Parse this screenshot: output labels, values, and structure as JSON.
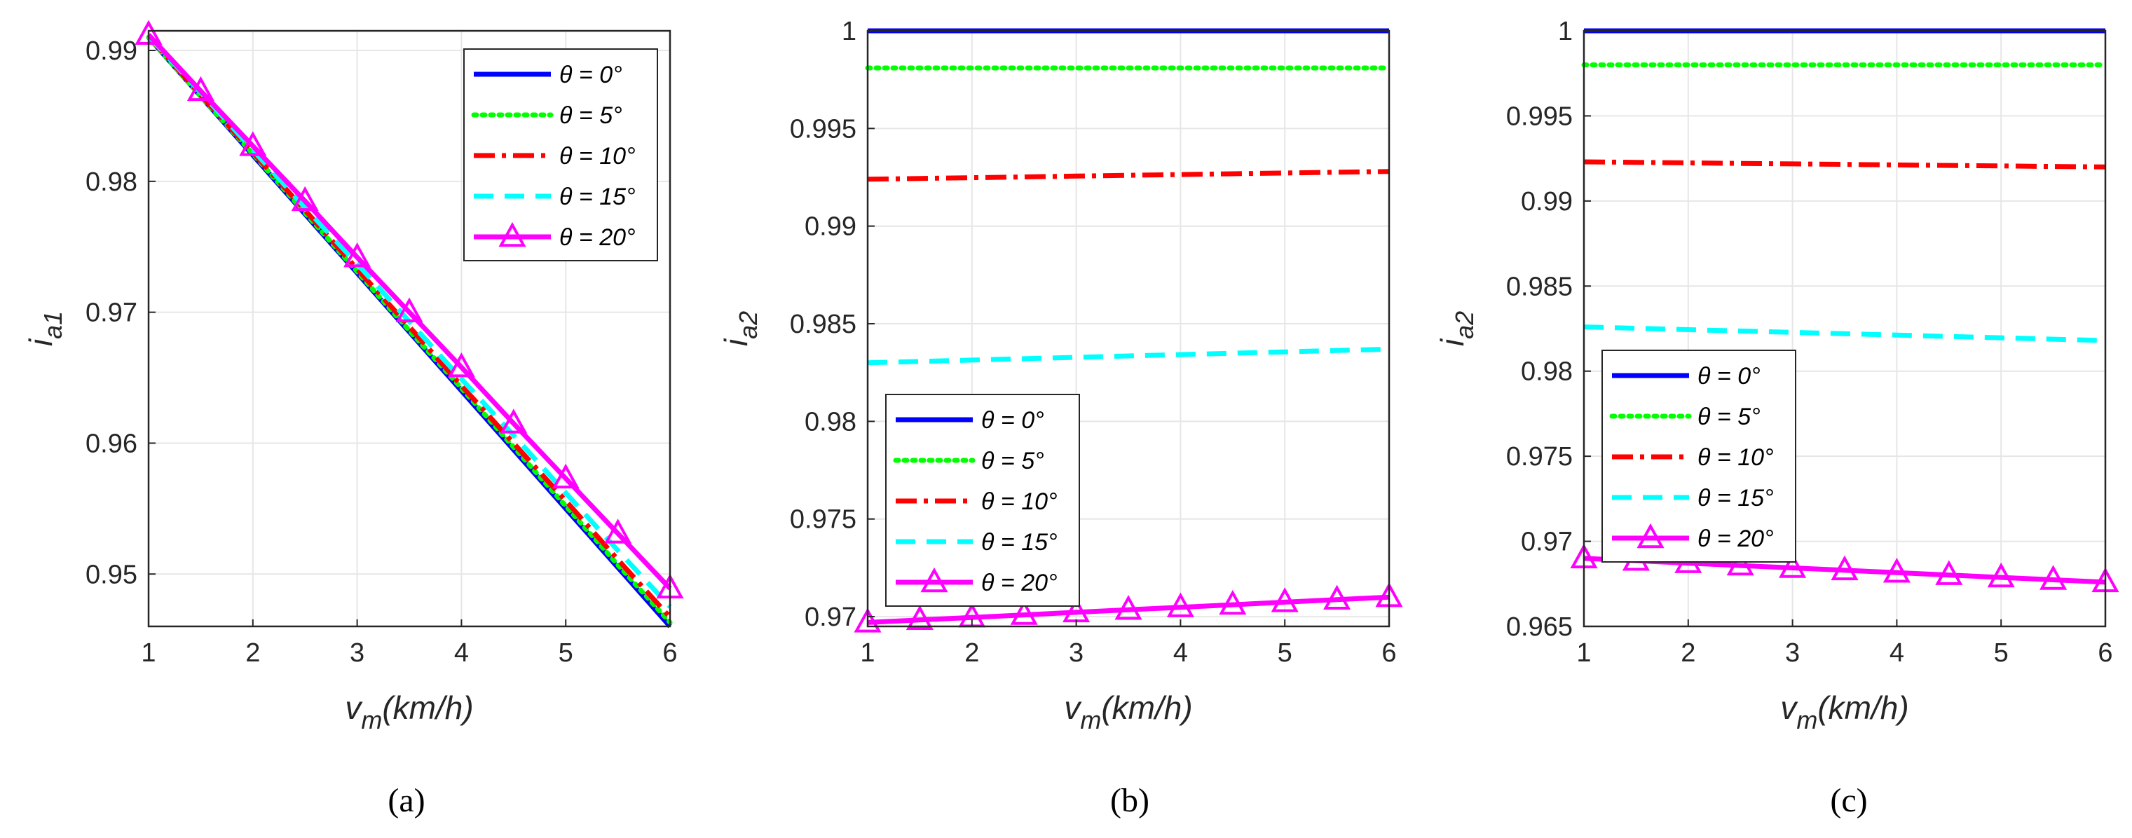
{
  "figure": {
    "captions": [
      "(a)",
      "(b)",
      "(c)"
    ]
  },
  "colors": {
    "theta_0": "#0000ff",
    "theta_5": "#00ff00",
    "theta_10": "#ff0000",
    "theta_15": "#00ffff",
    "theta_20": "#ff00ff",
    "grid": "#e6e6e6",
    "axis": "#262626"
  },
  "chart_data": [
    {
      "id": "a",
      "type": "line",
      "caption": "(a)",
      "xlabel_main": "v",
      "xlabel_sub": "m",
      "xlabel_rest": "(km/h)",
      "ylabel_main": "i",
      "ylabel_sub": "a1",
      "xlim": [
        1,
        6
      ],
      "ylim": [
        0.946,
        0.9915
      ],
      "xticks": [
        1,
        2,
        3,
        4,
        5,
        6
      ],
      "yticks": [
        0.95,
        0.96,
        0.97,
        0.98,
        0.99
      ],
      "ytick_labels": [
        "0.95",
        "0.96",
        "0.97",
        "0.98",
        "0.99"
      ],
      "grid": true,
      "legend_position": "top-right",
      "x": [
        1,
        1.5,
        2,
        2.5,
        3,
        3.5,
        4,
        4.5,
        5,
        5.5,
        6
      ],
      "series": [
        {
          "name": "θ = 0°",
          "style": "solid",
          "color": "#0000ff",
          "values": [
            0.991,
            0.9865,
            0.982,
            0.9775,
            0.973,
            0.9685,
            0.964,
            0.9595,
            0.955,
            0.9505,
            0.946
          ]
        },
        {
          "name": "θ = 5°",
          "style": "dotted",
          "color": "#00ff00",
          "values": [
            0.991,
            0.9865,
            0.9821,
            0.9776,
            0.9731,
            0.9686,
            0.9642,
            0.9597,
            0.9552,
            0.9507,
            0.9463
          ]
        },
        {
          "name": "θ = 10°",
          "style": "dashdot",
          "color": "#ff0000",
          "values": [
            0.9911,
            0.9866,
            0.9822,
            0.9778,
            0.9733,
            0.9689,
            0.9644,
            0.96,
            0.9556,
            0.9511,
            0.9467
          ]
        },
        {
          "name": "θ = 15°",
          "style": "dashed",
          "color": "#00ffff",
          "values": [
            0.9911,
            0.9868,
            0.9824,
            0.978,
            0.9737,
            0.9693,
            0.9649,
            0.9606,
            0.9562,
            0.9518,
            0.9475
          ]
        },
        {
          "name": "θ = 20°",
          "style": "solid-triangle",
          "color": "#ff00ff",
          "values": [
            0.9912,
            0.9869,
            0.9827,
            0.9785,
            0.9742,
            0.97,
            0.9658,
            0.9615,
            0.9573,
            0.9531,
            0.9489
          ]
        }
      ]
    },
    {
      "id": "b",
      "type": "line",
      "caption": "(b)",
      "xlabel_main": "v",
      "xlabel_sub": "m",
      "xlabel_rest": "(km/h)",
      "ylabel_main": "i",
      "ylabel_sub": "a2",
      "xlim": [
        1,
        6
      ],
      "ylim": [
        0.9695,
        1.0
      ],
      "xticks": [
        1,
        2,
        3,
        4,
        5,
        6
      ],
      "yticks": [
        0.97,
        0.975,
        0.98,
        0.985,
        0.99,
        0.995,
        1
      ],
      "ytick_labels": [
        "0.97",
        "0.975",
        "0.98",
        "0.985",
        "0.99",
        "0.995",
        "1"
      ],
      "grid": true,
      "legend_position": "bottom-left",
      "x": [
        1,
        1.5,
        2,
        2.5,
        3,
        3.5,
        4,
        4.5,
        5,
        5.5,
        6
      ],
      "series": [
        {
          "name": "θ = 0°",
          "style": "solid",
          "color": "#0000ff",
          "values": [
            1.0,
            1.0,
            1.0,
            1.0,
            1.0,
            1.0,
            1.0,
            1.0,
            1.0,
            1.0,
            1.0
          ]
        },
        {
          "name": "θ = 5°",
          "style": "dotted",
          "color": "#00ff00",
          "values": [
            0.9981,
            0.9981,
            0.9981,
            0.9981,
            0.9981,
            0.9981,
            0.9981,
            0.9981,
            0.9981,
            0.9981,
            0.9981
          ]
        },
        {
          "name": "θ = 10°",
          "style": "dashdot",
          "color": "#ff0000",
          "values": [
            0.9924,
            0.99244,
            0.99248,
            0.99252,
            0.99256,
            0.9926,
            0.99264,
            0.99268,
            0.99272,
            0.99276,
            0.9928
          ]
        },
        {
          "name": "θ = 15°",
          "style": "dashed",
          "color": "#00ffff",
          "values": [
            0.983,
            0.98307,
            0.98314,
            0.98321,
            0.98328,
            0.98335,
            0.98342,
            0.98349,
            0.98356,
            0.98363,
            0.9837
          ]
        },
        {
          "name": "θ = 20°",
          "style": "solid-triangle",
          "color": "#ff00ff",
          "values": [
            0.9697,
            0.96983,
            0.96996,
            0.97009,
            0.97022,
            0.97035,
            0.97048,
            0.97061,
            0.97074,
            0.97087,
            0.971
          ]
        }
      ]
    },
    {
      "id": "c",
      "type": "line",
      "caption": "(c)",
      "xlabel_main": "v",
      "xlabel_sub": "m",
      "xlabel_rest": "(km/h)",
      "ylabel_main": "i",
      "ylabel_sub": "a2",
      "xlim": [
        1,
        6
      ],
      "ylim": [
        0.965,
        1.0
      ],
      "xticks": [
        1,
        2,
        3,
        4,
        5,
        6
      ],
      "yticks": [
        0.965,
        0.97,
        0.975,
        0.98,
        0.985,
        0.99,
        0.995,
        1
      ],
      "ytick_labels": [
        "0.965",
        "0.97",
        "0.975",
        "0.98",
        "0.985",
        "0.99",
        "0.995",
        "1"
      ],
      "grid": true,
      "legend_position": "middle-left",
      "x": [
        1,
        1.5,
        2,
        2.5,
        3,
        3.5,
        4,
        4.5,
        5,
        5.5,
        6
      ],
      "series": [
        {
          "name": "θ = 0°",
          "style": "solid",
          "color": "#0000ff",
          "values": [
            1.0,
            1.0,
            1.0,
            1.0,
            1.0,
            1.0,
            1.0,
            1.0,
            1.0,
            1.0,
            1.0
          ]
        },
        {
          "name": "θ = 5°",
          "style": "dotted",
          "color": "#00ff00",
          "values": [
            0.998,
            0.998,
            0.998,
            0.998,
            0.998,
            0.998,
            0.998,
            0.998,
            0.998,
            0.998,
            0.998
          ]
        },
        {
          "name": "θ = 10°",
          "style": "dashdot",
          "color": "#ff0000",
          "values": [
            0.9923,
            0.99227,
            0.99224,
            0.99221,
            0.99218,
            0.99215,
            0.99212,
            0.99209,
            0.99206,
            0.99203,
            0.992
          ]
        },
        {
          "name": "θ = 15°",
          "style": "dashed",
          "color": "#00ffff",
          "values": [
            0.9826,
            0.98252,
            0.98244,
            0.98236,
            0.98228,
            0.9822,
            0.98212,
            0.98204,
            0.98196,
            0.98188,
            0.9818
          ]
        },
        {
          "name": "θ = 20°",
          "style": "solid-triangle",
          "color": "#ff00ff",
          "values": [
            0.969,
            0.96886,
            0.96872,
            0.96858,
            0.96844,
            0.9683,
            0.96816,
            0.96802,
            0.96788,
            0.96774,
            0.9676
          ]
        }
      ]
    }
  ]
}
